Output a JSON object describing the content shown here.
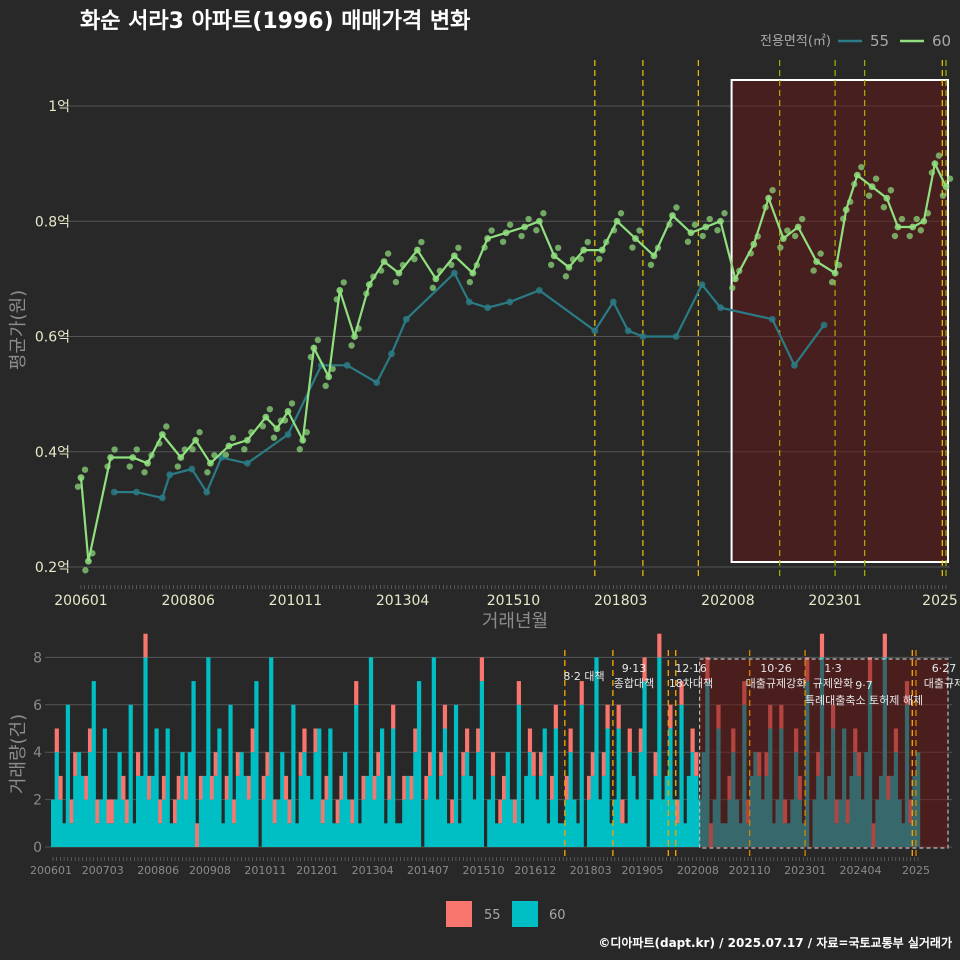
{
  "header": {
    "title": "화순 서라3 아파트(1996) 매매가격 변화",
    "legend_title": "전용면적(㎡)"
  },
  "top_chart": {
    "ylabel": "평균가(원)",
    "xlabel": "거래년월",
    "y_ticks": [
      {
        "v": 0.2,
        "label": "0.2억"
      },
      {
        "v": 0.4,
        "label": "0.4억"
      },
      {
        "v": 0.6,
        "label": "0.6억"
      },
      {
        "v": 0.8,
        "label": "0.8억"
      },
      {
        "v": 1.0,
        "label": "1억"
      }
    ],
    "x_ticks": [
      "200601",
      "200806",
      "201011",
      "201304",
      "201510",
      "201803",
      "202008",
      "202301",
      "2025"
    ]
  },
  "bottom_chart": {
    "ylabel": "거래량(건)",
    "y_ticks": [
      "0",
      "2",
      "4",
      "6",
      "8"
    ],
    "x_ticks": [
      "200601",
      "200703",
      "200806",
      "200908",
      "201011",
      "201201",
      "201304",
      "201407",
      "201510",
      "201612",
      "201803",
      "201905",
      "202008",
      "202110",
      "202301",
      "202404",
      "2025"
    ],
    "annotations": [
      {
        "date": "8·2 대책",
        "name": ""
      },
      {
        "date": "9·13",
        "name": "종합대책"
      },
      {
        "date": "12·16",
        "name": "18차대책"
      },
      {
        "date": "10·26",
        "name": "대출규제강화"
      },
      {
        "date": "1·3",
        "name": "규제완화"
      },
      {
        "date": "9·7",
        "name": "특례대출축소 토허제 해제"
      },
      {
        "date": "6·27",
        "name": "대출규제"
      }
    ]
  },
  "legend": {
    "series": [
      {
        "name": "55",
        "line_color": "#2a7b85",
        "bar_color": "#f8766d"
      },
      {
        "name": "60",
        "line_color": "#90e07f",
        "bar_color": "#00bfc4"
      }
    ]
  },
  "caption": "©디아파트(dapt.kr) / 2025.07.17 / 자료=국토교통부 실거래가",
  "chart_data": [
    {
      "type": "line",
      "title": "화순 서라3 아파트(1996) 매매가격 변화",
      "xlabel": "거래년월",
      "ylabel": "평균가(원)",
      "y_unit": "억",
      "ylim": [
        0.18,
        1.08
      ],
      "x_range": [
        "2006-01",
        "2025-07"
      ],
      "grid": true,
      "legend_position": "top-right",
      "series": [
        {
          "name": "55",
          "points": [
            [
              "2006-10",
              0.33
            ],
            [
              "2007-04",
              0.33
            ],
            [
              "2007-11",
              0.32
            ],
            [
              "2008-01",
              0.36
            ],
            [
              "2008-07",
              0.37
            ],
            [
              "2008-11",
              0.33
            ],
            [
              "2009-03",
              0.39
            ],
            [
              "2009-10",
              0.38
            ],
            [
              "2010-09",
              0.43
            ],
            [
              "2011-06",
              0.55
            ],
            [
              "2012-01",
              0.55
            ],
            [
              "2012-09",
              0.52
            ],
            [
              "2013-01",
              0.57
            ],
            [
              "2013-05",
              0.63
            ],
            [
              "2014-06",
              0.71
            ],
            [
              "2014-10",
              0.66
            ],
            [
              "2015-03",
              0.65
            ],
            [
              "2015-09",
              0.66
            ],
            [
              "2016-05",
              0.68
            ],
            [
              "2017-08",
              0.61
            ],
            [
              "2018-01",
              0.66
            ],
            [
              "2018-05",
              0.61
            ],
            [
              "2018-09",
              0.6
            ],
            [
              "2019-06",
              0.6
            ],
            [
              "2020-01",
              0.69
            ],
            [
              "2020-06",
              0.65
            ],
            [
              "2021-08",
              0.63
            ],
            [
              "2022-02",
              0.55
            ],
            [
              "2022-10",
              0.62
            ]
          ]
        },
        {
          "name": "60",
          "points": [
            [
              "2006-01",
              0.355
            ],
            [
              "2006-03",
              0.21
            ],
            [
              "2006-09",
              0.39
            ],
            [
              "2007-03",
              0.39
            ],
            [
              "2007-07",
              0.38
            ],
            [
              "2007-11",
              0.43
            ],
            [
              "2008-04",
              0.39
            ],
            [
              "2008-08",
              0.42
            ],
            [
              "2008-12",
              0.38
            ],
            [
              "2009-05",
              0.41
            ],
            [
              "2009-10",
              0.42
            ],
            [
              "2010-03",
              0.46
            ],
            [
              "2010-06",
              0.44
            ],
            [
              "2010-09",
              0.47
            ],
            [
              "2011-01",
              0.42
            ],
            [
              "2011-04",
              0.58
            ],
            [
              "2011-08",
              0.53
            ],
            [
              "2011-11",
              0.68
            ],
            [
              "2012-03",
              0.6
            ],
            [
              "2012-07",
              0.69
            ],
            [
              "2012-11",
              0.73
            ],
            [
              "2013-03",
              0.71
            ],
            [
              "2013-08",
              0.75
            ],
            [
              "2014-01",
              0.7
            ],
            [
              "2014-06",
              0.74
            ],
            [
              "2014-11",
              0.71
            ],
            [
              "2015-03",
              0.77
            ],
            [
              "2015-08",
              0.78
            ],
            [
              "2016-01",
              0.79
            ],
            [
              "2016-05",
              0.8
            ],
            [
              "2016-09",
              0.74
            ],
            [
              "2017-01",
              0.72
            ],
            [
              "2017-05",
              0.75
            ],
            [
              "2017-10",
              0.75
            ],
            [
              "2018-02",
              0.8
            ],
            [
              "2018-07",
              0.77
            ],
            [
              "2018-12",
              0.74
            ],
            [
              "2019-05",
              0.81
            ],
            [
              "2019-10",
              0.78
            ],
            [
              "2020-02",
              0.79
            ],
            [
              "2020-06",
              0.8
            ],
            [
              "2020-10",
              0.7
            ],
            [
              "2021-03",
              0.76
            ],
            [
              "2021-07",
              0.84
            ],
            [
              "2021-11",
              0.77
            ],
            [
              "2022-03",
              0.79
            ],
            [
              "2022-08",
              0.73
            ],
            [
              "2023-01",
              0.71
            ],
            [
              "2023-04",
              0.82
            ],
            [
              "2023-07",
              0.88
            ],
            [
              "2023-11",
              0.86
            ],
            [
              "2024-03",
              0.84
            ],
            [
              "2024-06",
              0.79
            ],
            [
              "2024-10",
              0.79
            ],
            [
              "2025-01",
              0.8
            ],
            [
              "2025-04",
              0.9
            ],
            [
              "2025-07",
              0.86
            ]
          ]
        }
      ],
      "highlight_range": [
        "2020-09",
        "2025-07"
      ]
    },
    {
      "type": "bar",
      "ylabel": "거래량(건)",
      "ylim": [
        0,
        8.5
      ],
      "stacked": true,
      "note": "monthly transaction counts, approximate",
      "series": [
        {
          "name": "55",
          "monthly_counts_sample": [
            0,
            0,
            0,
            0,
            1,
            0,
            0,
            1,
            0,
            0,
            2,
            0,
            0,
            1,
            0,
            1,
            0,
            0,
            1,
            0,
            1,
            0,
            0,
            1
          ]
        },
        {
          "name": "60",
          "monthly_counts_sample": [
            1,
            1,
            0,
            1,
            2,
            2,
            2,
            1,
            3,
            2,
            2,
            1,
            4,
            3,
            2,
            4,
            3,
            5,
            6,
            7,
            5,
            4,
            3,
            8
          ]
        }
      ]
    }
  ]
}
